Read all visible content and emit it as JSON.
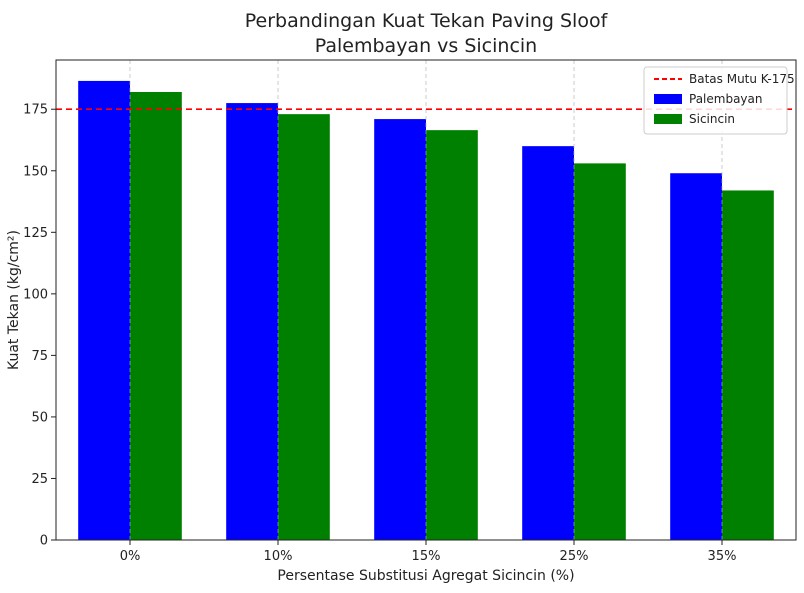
{
  "chart_data": {
    "type": "bar",
    "title_line1": "Perbandingan Kuat Tekan Paving Sloof",
    "title_line2": "Palembayan vs Sicincin",
    "xlabel": "Persentase Substitusi Agregat Sicincin (%)",
    "ylabel": "Kuat Tekan (kg/cm²)",
    "categories": [
      "0%",
      "10%",
      "15%",
      "25%",
      "35%"
    ],
    "series": [
      {
        "name": "Palembayan",
        "color": "#0000ff",
        "values": [
          186.5,
          177.5,
          171,
          160,
          149
        ]
      },
      {
        "name": "Sicincin",
        "color": "#008000",
        "values": [
          182,
          173,
          166.5,
          153,
          142
        ]
      }
    ],
    "reference_line": {
      "name": "Batas Mutu K-175",
      "value": 175,
      "color": "#ff0000",
      "style": "dashed"
    },
    "ylim": [
      0,
      195
    ],
    "yticks": [
      0,
      25,
      50,
      75,
      100,
      125,
      150,
      175
    ],
    "grid": "x-dashed",
    "legend_position": "top-right"
  }
}
